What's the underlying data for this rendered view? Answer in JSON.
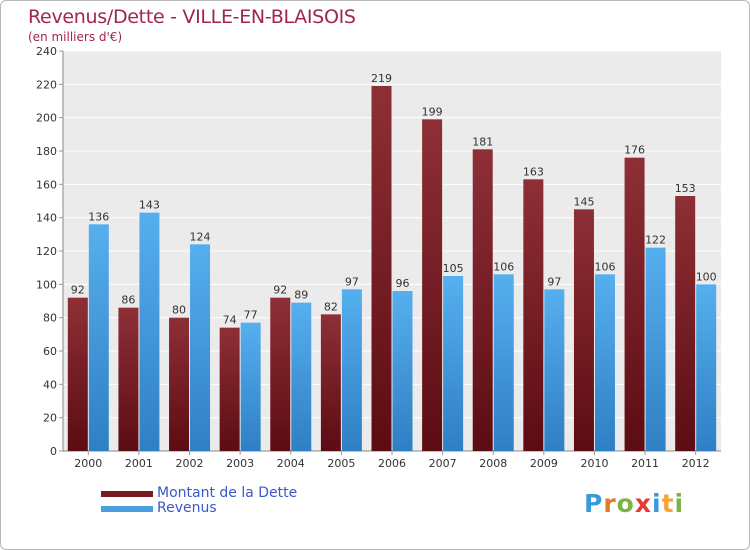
{
  "chart_data": {
    "type": "bar",
    "title": "Revenus/Dette - VILLE-EN-BLAISOIS",
    "subtitle": "(en milliers d'€)",
    "categories": [
      "2000",
      "2001",
      "2002",
      "2003",
      "2004",
      "2005",
      "2006",
      "2007",
      "2008",
      "2009",
      "2010",
      "2011",
      "2012"
    ],
    "series": [
      {
        "name": "Montant de la Dette",
        "color": "#7a1a22",
        "values": [
          92,
          86,
          80,
          74,
          92,
          82,
          219,
          199,
          181,
          163,
          145,
          176,
          153
        ]
      },
      {
        "name": "Revenus",
        "color": "#4a9fe0",
        "values": [
          136,
          143,
          124,
          77,
          89,
          97,
          96,
          105,
          106,
          97,
          106,
          122,
          100
        ]
      }
    ],
    "ylim": [
      0,
      240
    ],
    "yticks": [
      0,
      20,
      40,
      60,
      80,
      100,
      120,
      140,
      160,
      180,
      200,
      220,
      240
    ],
    "grid": true,
    "xlabel": "",
    "ylabel": "",
    "legend": "bottom-left"
  },
  "logo": {
    "letters": [
      "P",
      "r",
      "o",
      "x",
      "i",
      "t",
      "i"
    ],
    "colors": [
      "#3a9ad9",
      "#e07a2a",
      "#7cb342",
      "#e53935",
      "#3a9ad9",
      "#f2a33a",
      "#7cb342"
    ]
  }
}
